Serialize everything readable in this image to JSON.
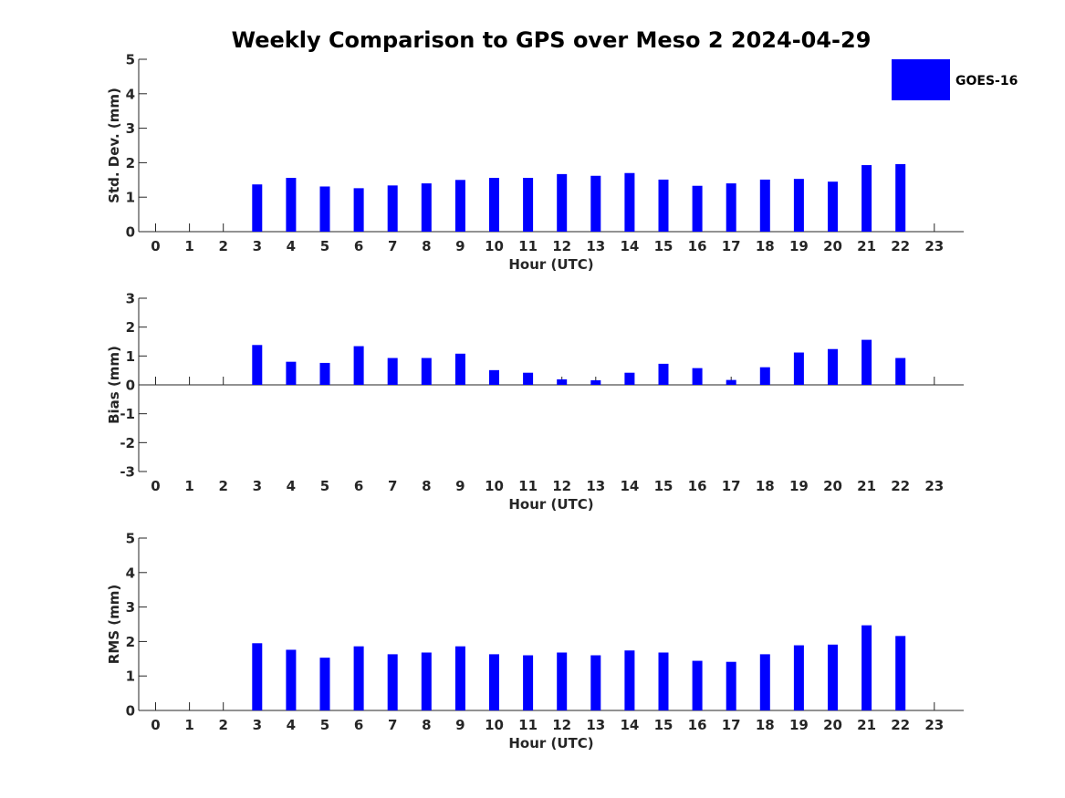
{
  "title": "Weekly Comparison to GPS over Meso 2 2024-04-29",
  "legend": {
    "label": "GOES-16",
    "color": "#0000ff"
  },
  "bar_color": "#0000ff",
  "chart_data": [
    {
      "type": "bar",
      "name": "std-dev",
      "xlabel": "Hour (UTC)",
      "ylabel": "Std. Dev. (mm)",
      "categories": [
        "0",
        "1",
        "2",
        "3",
        "4",
        "5",
        "6",
        "7",
        "8",
        "9",
        "10",
        "11",
        "12",
        "13",
        "14",
        "15",
        "16",
        "17",
        "18",
        "19",
        "20",
        "21",
        "22",
        "23"
      ],
      "values": [
        null,
        null,
        null,
        1.37,
        1.56,
        1.31,
        1.26,
        1.34,
        1.4,
        1.5,
        1.56,
        1.56,
        1.67,
        1.62,
        1.7,
        1.51,
        1.33,
        1.4,
        1.51,
        1.53,
        1.45,
        1.93,
        1.96,
        null
      ],
      "ylim": [
        0,
        5
      ],
      "yticks": [
        "0",
        "1",
        "2",
        "3",
        "4",
        "5"
      ],
      "ytick_values": [
        0,
        1,
        2,
        3,
        4,
        5
      ]
    },
    {
      "type": "bar",
      "name": "bias",
      "xlabel": "Hour (UTC)",
      "ylabel": "Bias (mm)",
      "categories": [
        "0",
        "1",
        "2",
        "3",
        "4",
        "5",
        "6",
        "7",
        "8",
        "9",
        "10",
        "11",
        "12",
        "13",
        "14",
        "15",
        "16",
        "17",
        "18",
        "19",
        "20",
        "21",
        "22",
        "23"
      ],
      "values": [
        null,
        null,
        null,
        1.38,
        0.8,
        0.76,
        1.34,
        0.93,
        0.93,
        1.08,
        0.51,
        0.42,
        0.19,
        0.16,
        0.42,
        0.73,
        0.58,
        0.17,
        0.61,
        1.12,
        1.24,
        1.56,
        0.93,
        null
      ],
      "ylim": [
        -3,
        3
      ],
      "yticks": [
        "-3",
        "-2",
        "-1",
        "0",
        "1",
        "2",
        "3"
      ],
      "ytick_values": [
        -3,
        -2,
        -1,
        0,
        1,
        2,
        3
      ]
    },
    {
      "type": "bar",
      "name": "rms",
      "xlabel": "Hour (UTC)",
      "ylabel": "RMS (mm)",
      "categories": [
        "0",
        "1",
        "2",
        "3",
        "4",
        "5",
        "6",
        "7",
        "8",
        "9",
        "10",
        "11",
        "12",
        "13",
        "14",
        "15",
        "16",
        "17",
        "18",
        "19",
        "20",
        "21",
        "22",
        "23"
      ],
      "values": [
        null,
        null,
        null,
        1.95,
        1.76,
        1.53,
        1.86,
        1.63,
        1.68,
        1.86,
        1.63,
        1.6,
        1.68,
        1.6,
        1.74,
        1.68,
        1.44,
        1.41,
        1.63,
        1.89,
        1.91,
        2.47,
        2.16,
        null
      ],
      "ylim": [
        0,
        5
      ],
      "yticks": [
        "0",
        "1",
        "2",
        "3",
        "4",
        "5"
      ],
      "ytick_values": [
        0,
        1,
        2,
        3,
        4,
        5
      ]
    }
  ]
}
